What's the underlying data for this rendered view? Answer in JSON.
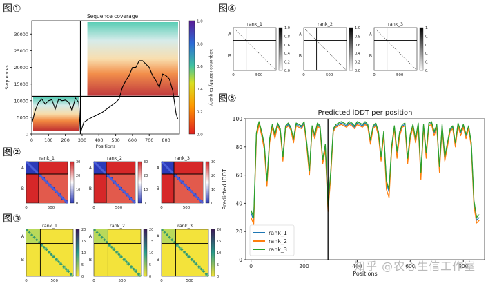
{
  "panels": {
    "p1": "图①",
    "p2": "图②",
    "p3": "图③",
    "p4": "图④",
    "p5": "图⑤"
  },
  "watermark": "知乎 @农心生信工作室",
  "colors": {
    "rank_1": "#1f77b4",
    "rank_2": "#ff7f0e",
    "rank_3": "#2ca02c",
    "pae_low": "#2c3ab8",
    "pae_high": "#d62728",
    "contact_bg": "#f3e33b",
    "contact_fg": "#3a9a6a"
  },
  "chart_data": [
    {
      "id": "coverage",
      "type": "heatmap",
      "title": "Sequence coverage",
      "xlabel": "Positions",
      "ylabel": "Sequences",
      "colorbar_label": "Sequence identity to query",
      "xlim": [
        0,
        880
      ],
      "ylim": [
        0,
        34000
      ],
      "xticks": [
        0,
        100,
        200,
        300,
        400,
        500,
        600,
        700,
        800
      ],
      "yticks": [
        0,
        5000,
        10000,
        15000,
        20000,
        25000,
        30000
      ],
      "cbar_ticks": [
        "0.0",
        "0.2",
        "0.4",
        "0.6",
        "0.8",
        "1.0"
      ],
      "domain_boundary": 290,
      "coverage_line": {
        "x": [
          0,
          20,
          40,
          60,
          80,
          100,
          120,
          140,
          160,
          180,
          200,
          220,
          240,
          260,
          280,
          290,
          310,
          340,
          380,
          420,
          460,
          500,
          520,
          540,
          560,
          580,
          600,
          620,
          640,
          660,
          680,
          700,
          720,
          740,
          760,
          780,
          800,
          820,
          840,
          860,
          870
        ],
        "y": [
          3000,
          7000,
          9500,
          10500,
          9000,
          10000,
          10300,
          7500,
          10500,
          10000,
          10200,
          9600,
          7000,
          10800,
          9500,
          300,
          3500,
          4500,
          5500,
          6500,
          8000,
          9500,
          10500,
          14000,
          16000,
          17500,
          20000,
          20000,
          22000,
          22000,
          21000,
          20000,
          17500,
          16000,
          14000,
          18000,
          17500,
          16500,
          13000,
          6000,
          4500
        ]
      }
    },
    {
      "id": "pae",
      "type": "heatmap",
      "series": [
        "rank_1",
        "rank_2",
        "rank_3"
      ],
      "cbar_ticks": [
        "30",
        "20",
        "10",
        "0"
      ],
      "xticks": [
        "0",
        "500"
      ],
      "domains": [
        "A",
        "B"
      ]
    },
    {
      "id": "contacts",
      "type": "heatmap",
      "series": [
        "rank_1",
        "rank_2",
        "rank_3"
      ],
      "cbar_ticks": [
        "20",
        "15",
        "10",
        "5",
        "0"
      ],
      "xticks": [
        "0",
        "500"
      ],
      "domains": [
        "A",
        "B"
      ]
    },
    {
      "id": "pae_small",
      "type": "heatmap",
      "series": [
        "rank_1",
        "rank_2",
        "rank_3"
      ],
      "cbar_ticks": [
        "1.0",
        "0.8",
        "0.6",
        "0.4",
        "0.2",
        "0.0"
      ],
      "xticks": [
        "0",
        "500"
      ],
      "domains": [
        "A",
        "B"
      ]
    },
    {
      "id": "plddt",
      "type": "line",
      "title": "Predicted lDDT per position",
      "xlabel": "Positions",
      "ylabel": "Predicted lDDT",
      "xlim": [
        -20,
        880
      ],
      "ylim": [
        0,
        100
      ],
      "xticks": [
        0,
        200,
        400,
        600,
        800
      ],
      "yticks": [
        0,
        20,
        40,
        60,
        80,
        100
      ],
      "domain_boundary": 290,
      "legend_position": "lower-left",
      "x": [
        0,
        10,
        20,
        30,
        40,
        50,
        60,
        70,
        80,
        90,
        100,
        110,
        120,
        130,
        140,
        150,
        160,
        170,
        180,
        190,
        200,
        210,
        220,
        230,
        240,
        250,
        260,
        270,
        280,
        290,
        300,
        310,
        320,
        330,
        340,
        350,
        360,
        370,
        380,
        390,
        400,
        410,
        420,
        430,
        440,
        450,
        460,
        470,
        480,
        490,
        500,
        510,
        520,
        530,
        540,
        550,
        560,
        570,
        580,
        590,
        600,
        610,
        620,
        630,
        640,
        650,
        660,
        670,
        680,
        690,
        700,
        710,
        720,
        730,
        740,
        750,
        760,
        770,
        780,
        790,
        800,
        810,
        820,
        830,
        840,
        850,
        860
      ],
      "series": [
        {
          "name": "rank_1",
          "values": [
            33,
            28,
            88,
            97,
            90,
            80,
            55,
            85,
            95,
            88,
            96,
            92,
            72,
            94,
            96,
            93,
            85,
            96,
            95,
            94,
            97,
            82,
            62,
            94,
            88,
            96,
            94,
            70,
            80,
            36,
            60,
            92,
            95,
            96,
            97,
            96,
            95,
            97,
            96,
            94,
            97,
            96,
            95,
            97,
            95,
            84,
            94,
            96,
            90,
            72,
            90,
            55,
            48,
            80,
            94,
            76,
            90,
            95,
            96,
            70,
            88,
            95,
            85,
            96,
            60,
            95,
            75,
            96,
            97,
            90,
            95,
            65,
            95,
            72,
            82,
            92,
            94,
            82,
            96,
            90,
            95,
            88,
            94,
            82,
            40,
            28,
            30
          ]
        },
        {
          "name": "rank_2",
          "values": [
            30,
            25,
            86,
            96,
            88,
            78,
            52,
            83,
            94,
            86,
            95,
            91,
            70,
            93,
            95,
            92,
            83,
            95,
            94,
            93,
            96,
            80,
            60,
            93,
            86,
            95,
            93,
            68,
            78,
            34,
            58,
            91,
            94,
            95,
            96,
            95,
            94,
            96,
            95,
            93,
            96,
            95,
            94,
            96,
            94,
            82,
            93,
            95,
            88,
            70,
            88,
            50,
            44,
            78,
            93,
            72,
            88,
            94,
            95,
            68,
            86,
            94,
            83,
            95,
            57,
            94,
            72,
            95,
            96,
            88,
            94,
            62,
            94,
            70,
            80,
            91,
            93,
            80,
            95,
            88,
            94,
            86,
            93,
            80,
            38,
            26,
            28
          ]
        },
        {
          "name": "rank_3",
          "values": [
            35,
            30,
            90,
            98,
            91,
            82,
            56,
            86,
            96,
            89,
            97,
            93,
            73,
            95,
            97,
            94,
            86,
            97,
            96,
            95,
            98,
            83,
            63,
            95,
            89,
            97,
            95,
            71,
            82,
            38,
            62,
            93,
            96,
            97,
            98,
            97,
            96,
            98,
            97,
            95,
            98,
            97,
            96,
            98,
            96,
            85,
            95,
            97,
            91,
            73,
            91,
            56,
            50,
            81,
            95,
            77,
            91,
            96,
            97,
            72,
            89,
            96,
            86,
            97,
            62,
            96,
            76,
            97,
            98,
            91,
            96,
            66,
            96,
            73,
            83,
            93,
            95,
            83,
            97,
            91,
            96,
            89,
            95,
            83,
            42,
            30,
            32
          ]
        }
      ]
    }
  ]
}
